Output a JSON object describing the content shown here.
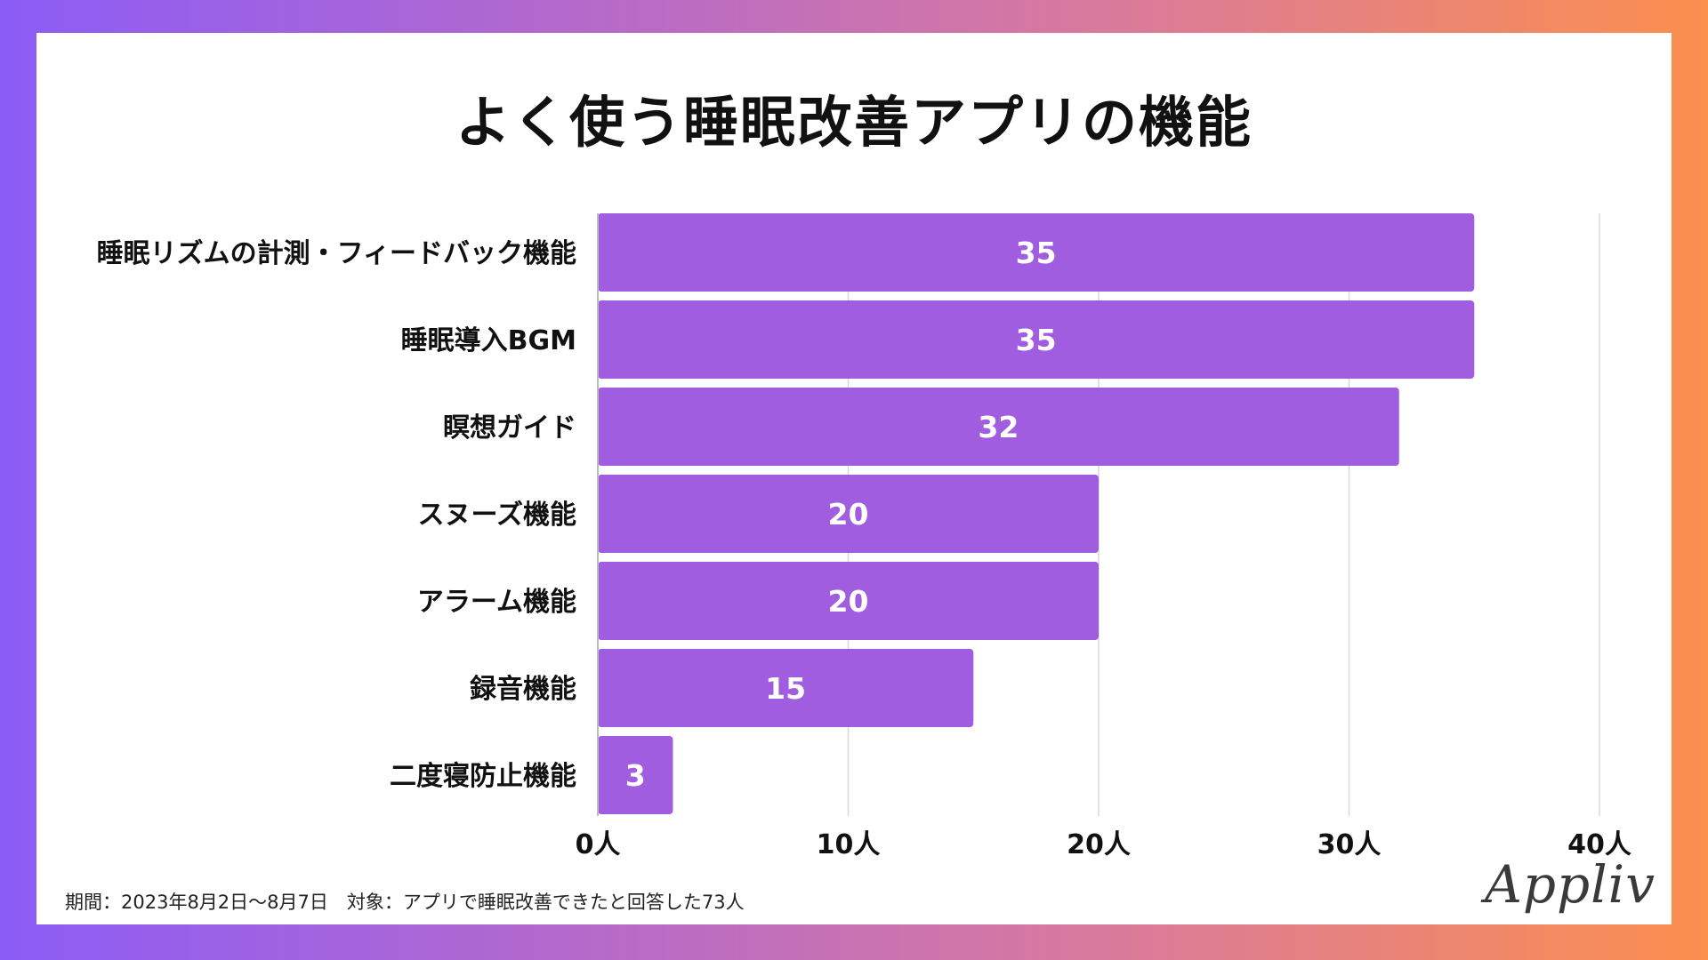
{
  "chart_data": {
    "type": "bar",
    "orientation": "horizontal",
    "title": "よく使う睡眠改善アプリの機能",
    "categories": [
      "睡眠リズムの計測・フィードバック機能",
      "睡眠導入BGM",
      "瞑想ガイド",
      "スヌーズ機能",
      "アラーム機能",
      "録音機能",
      "二度寝防止機能"
    ],
    "values": [
      35,
      35,
      32,
      20,
      20,
      15,
      3
    ],
    "xlim": [
      0,
      40
    ],
    "ticks": [
      0,
      10,
      20,
      30,
      40
    ],
    "tick_labels": [
      "0人",
      "10人",
      "20人",
      "30人",
      "40人"
    ],
    "xlabel": "",
    "ylabel": "",
    "grid": true,
    "bar_color": "#a05ddf",
    "data_label_color": "#ffffff"
  },
  "footnote": "期間：2023年8月2日〜8月7日　対象：アプリで睡眠改善できたと回答した73人",
  "brand": "Appliv"
}
